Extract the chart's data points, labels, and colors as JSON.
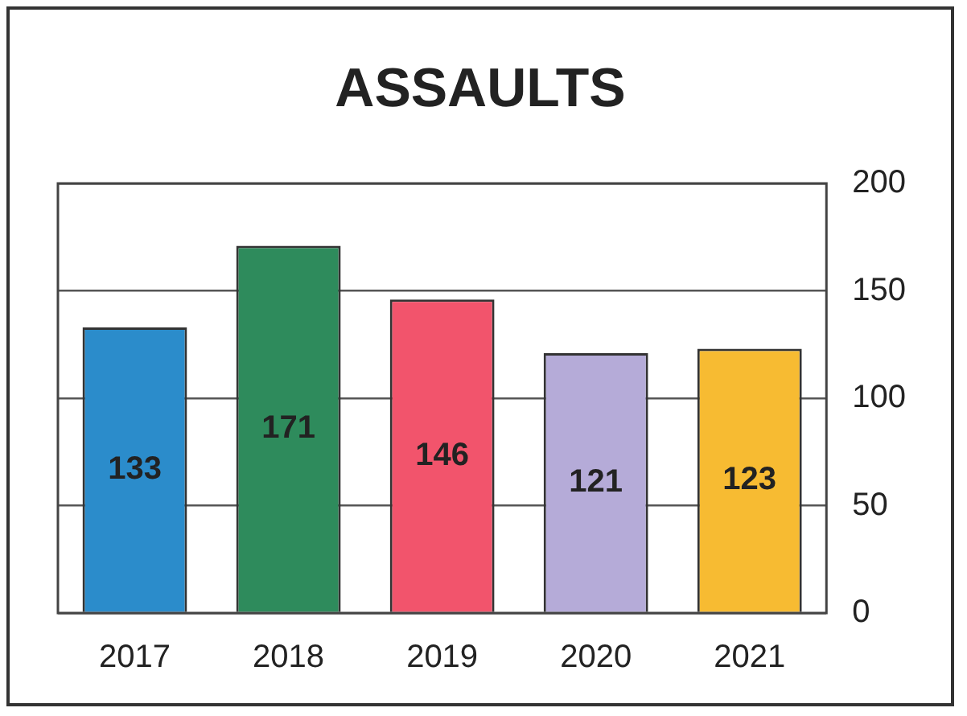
{
  "chart_data": {
    "type": "bar",
    "title": "ASSAULTS",
    "categories": [
      "2017",
      "2018",
      "2019",
      "2020",
      "2021"
    ],
    "values": [
      133,
      171,
      146,
      121,
      123
    ],
    "colors": [
      "#2b8ccb",
      "#2e8b5c",
      "#f2546c",
      "#b5abd8",
      "#f7bb32"
    ],
    "ylim": [
      0,
      200
    ],
    "yticks": [
      0,
      50,
      100,
      150,
      200
    ],
    "grid": "y",
    "legend": false,
    "data_labels": true
  }
}
